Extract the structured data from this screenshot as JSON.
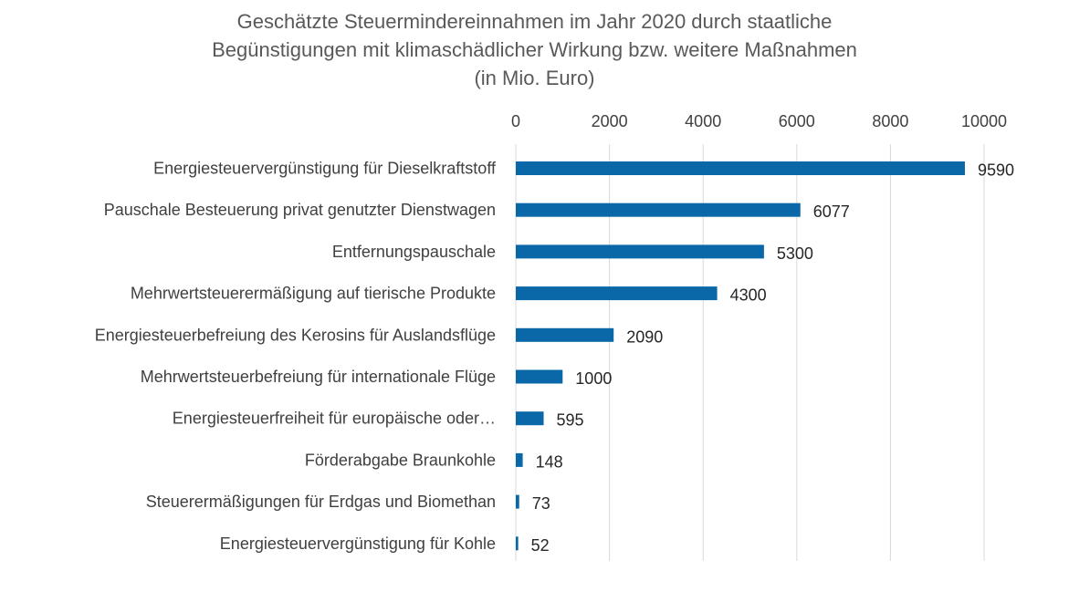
{
  "chart_data": {
    "type": "bar",
    "orientation": "horizontal",
    "title_lines": [
      "Geschätzte Steuermindereinnahmen im Jahr 2020 durch staatliche",
      "Begünstigungen mit klimaschädlicher Wirkung bzw. weitere Maßnahmen",
      "(in Mio. Euro)"
    ],
    "xlabel": "",
    "ylabel": "",
    "xlim": [
      0,
      10000
    ],
    "x_ticks": [
      0,
      2000,
      4000,
      6000,
      8000,
      10000
    ],
    "x_tick_labels": [
      "0",
      "2000",
      "4000",
      "6000",
      "8000",
      "10000"
    ],
    "axis_position": "top",
    "grid": "vertical",
    "legend": "none",
    "bar_color": "#0a68a8",
    "categories": [
      "Energiesteuervergünstigung für Dieselkraftstoff",
      "Pauschale Besteuerung privat genutzter Dienstwagen",
      "Entfernungspauschale",
      "Mehrwertsteuerermäßigung auf tierische Produkte",
      "Energiesteuerbefreiung des Kerosins für Auslandsflüge",
      "Mehrwertsteuerbefreiung für internationale Flüge",
      "Energiesteuerfreiheit für europäische oder…",
      "Förderabgabe Braunkohle",
      "Steuerermäßigungen für Erdgas und Biomethan",
      "Energiesteuervergünstigung für Kohle"
    ],
    "values": [
      9590,
      6077,
      5300,
      4300,
      2090,
      1000,
      595,
      148,
      73,
      52
    ],
    "data_labels": [
      "9590",
      "6077",
      "5300",
      "4300",
      "2090",
      "1000",
      "595",
      "148",
      "73",
      "52"
    ]
  }
}
